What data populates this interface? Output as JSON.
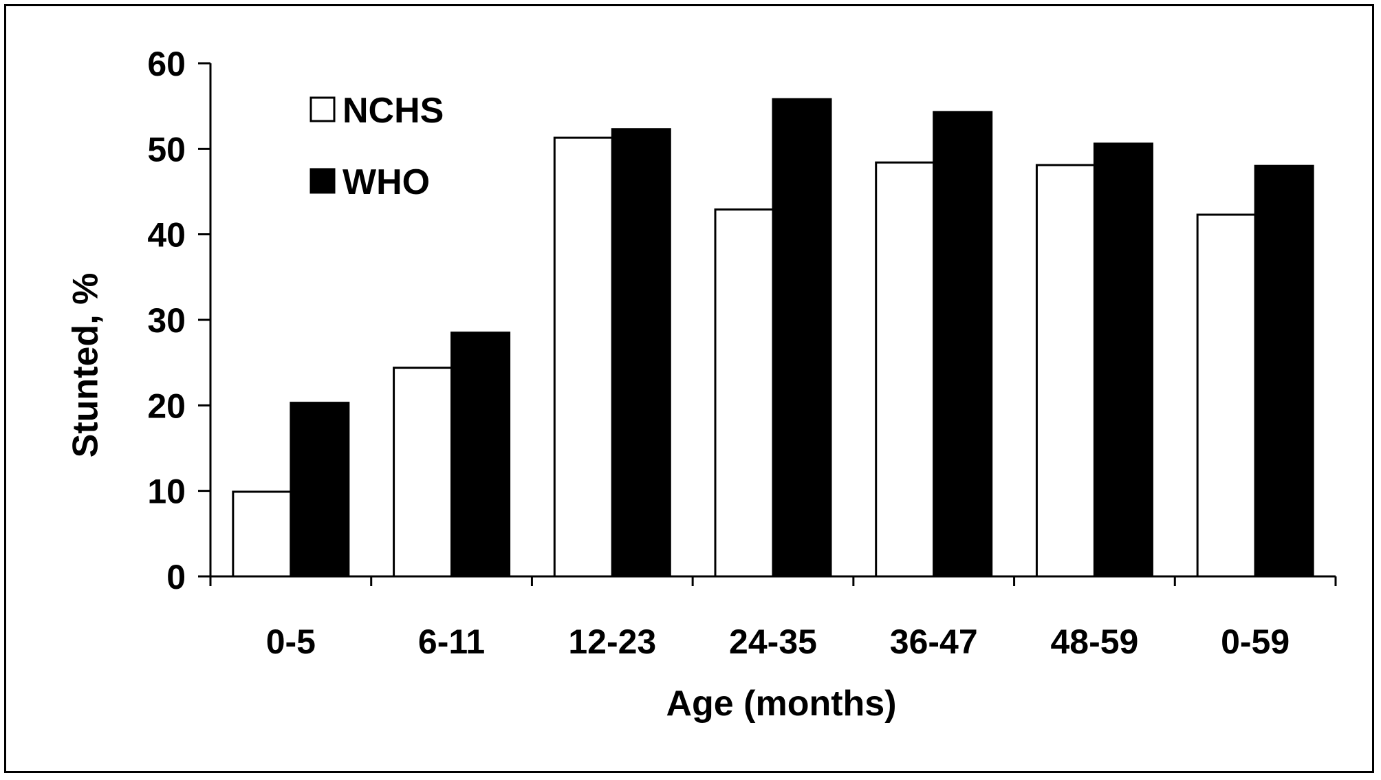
{
  "chart_data": {
    "type": "bar",
    "categories": [
      "0-5",
      "6-11",
      "12-23",
      "24-35",
      "36-47",
      "48-59",
      "0-59"
    ],
    "series": [
      {
        "name": "NCHS",
        "values": [
          9.9,
          24.4,
          51.3,
          42.9,
          48.4,
          48.1,
          42.3
        ],
        "color": "#ffffff"
      },
      {
        "name": "WHO",
        "values": [
          20.3,
          28.5,
          52.3,
          55.8,
          54.3,
          50.6,
          48.0
        ],
        "color": "#000000"
      }
    ],
    "xlabel": "Age (months)",
    "ylabel": "Stunted, %",
    "ylim": [
      0,
      60
    ],
    "yticks": [
      0,
      10,
      20,
      30,
      40,
      50,
      60
    ],
    "grid": false,
    "legend_position": "top-left"
  }
}
